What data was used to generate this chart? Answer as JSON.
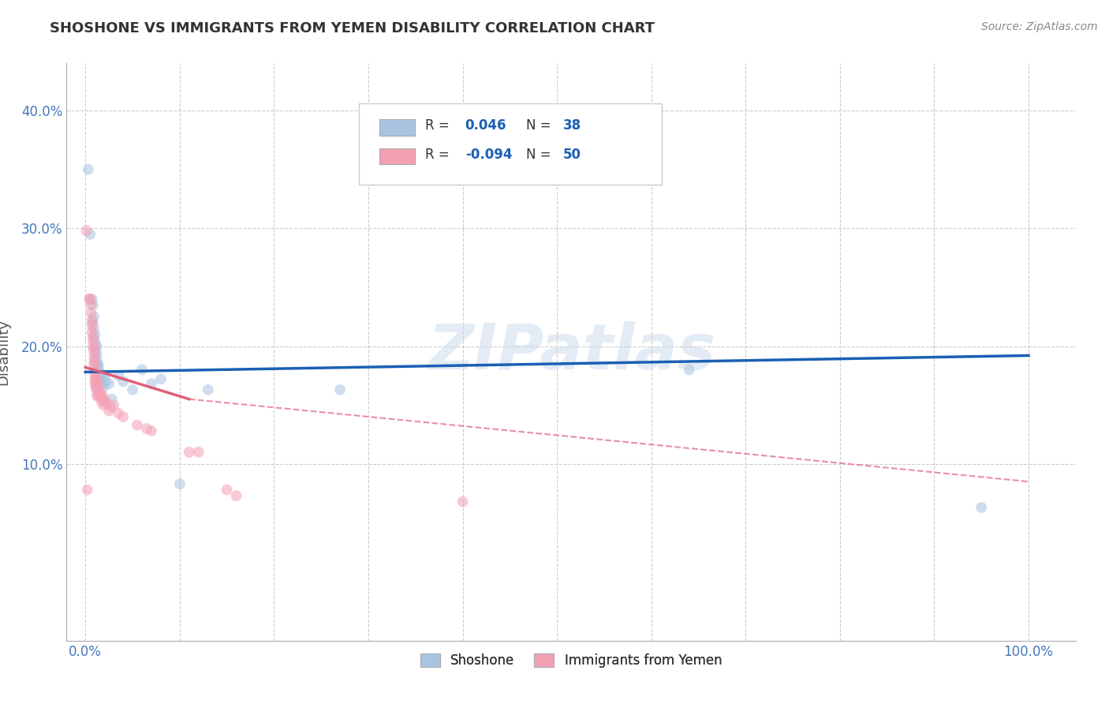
{
  "title": "SHOSHONE VS IMMIGRANTS FROM YEMEN DISABILITY CORRELATION CHART",
  "source": "Source: ZipAtlas.com",
  "ylabel": "Disability",
  "watermark": "ZIPatlas",
  "shoshone_color": "#a8c4e0",
  "yemen_color": "#f4a0b5",
  "line_shoshone_color": "#1a5fb4",
  "line_yemen_color": "#e0607a",
  "shoshone_scatter": [
    [
      0.003,
      0.35
    ],
    [
      0.005,
      0.295
    ],
    [
      0.007,
      0.24
    ],
    [
      0.008,
      0.235
    ],
    [
      0.008,
      0.22
    ],
    [
      0.009,
      0.225
    ],
    [
      0.009,
      0.215
    ],
    [
      0.01,
      0.21
    ],
    [
      0.01,
      0.205
    ],
    [
      0.011,
      0.2
    ],
    [
      0.011,
      0.195
    ],
    [
      0.012,
      0.2
    ],
    [
      0.012,
      0.193
    ],
    [
      0.012,
      0.188
    ],
    [
      0.013,
      0.185
    ],
    [
      0.013,
      0.18
    ],
    [
      0.014,
      0.183
    ],
    [
      0.015,
      0.178
    ],
    [
      0.015,
      0.172
    ],
    [
      0.016,
      0.175
    ],
    [
      0.017,
      0.17
    ],
    [
      0.018,
      0.168
    ],
    [
      0.019,
      0.165
    ],
    [
      0.02,
      0.175
    ],
    [
      0.022,
      0.17
    ],
    [
      0.025,
      0.168
    ],
    [
      0.028,
      0.155
    ],
    [
      0.035,
      0.175
    ],
    [
      0.04,
      0.17
    ],
    [
      0.05,
      0.163
    ],
    [
      0.06,
      0.18
    ],
    [
      0.07,
      0.168
    ],
    [
      0.08,
      0.172
    ],
    [
      0.1,
      0.083
    ],
    [
      0.13,
      0.163
    ],
    [
      0.27,
      0.163
    ],
    [
      0.64,
      0.18
    ],
    [
      0.95,
      0.063
    ]
  ],
  "yemen_scatter": [
    [
      0.001,
      0.298
    ],
    [
      0.004,
      0.24
    ],
    [
      0.005,
      0.24
    ],
    [
      0.006,
      0.235
    ],
    [
      0.006,
      0.228
    ],
    [
      0.007,
      0.222
    ],
    [
      0.007,
      0.218
    ],
    [
      0.007,
      0.212
    ],
    [
      0.008,
      0.208
    ],
    [
      0.008,
      0.205
    ],
    [
      0.008,
      0.2
    ],
    [
      0.009,
      0.198
    ],
    [
      0.009,
      0.195
    ],
    [
      0.009,
      0.19
    ],
    [
      0.009,
      0.185
    ],
    [
      0.01,
      0.188
    ],
    [
      0.01,
      0.183
    ],
    [
      0.01,
      0.178
    ],
    [
      0.01,
      0.173
    ],
    [
      0.01,
      0.168
    ],
    [
      0.011,
      0.175
    ],
    [
      0.011,
      0.17
    ],
    [
      0.011,
      0.165
    ],
    [
      0.012,
      0.17
    ],
    [
      0.012,
      0.163
    ],
    [
      0.012,
      0.158
    ],
    [
      0.013,
      0.168
    ],
    [
      0.013,
      0.162
    ],
    [
      0.014,
      0.157
    ],
    [
      0.015,
      0.163
    ],
    [
      0.016,
      0.158
    ],
    [
      0.017,
      0.153
    ],
    [
      0.018,
      0.158
    ],
    [
      0.019,
      0.15
    ],
    [
      0.02,
      0.155
    ],
    [
      0.022,
      0.152
    ],
    [
      0.025,
      0.145
    ],
    [
      0.027,
      0.148
    ],
    [
      0.03,
      0.15
    ],
    [
      0.035,
      0.143
    ],
    [
      0.04,
      0.14
    ],
    [
      0.055,
      0.133
    ],
    [
      0.065,
      0.13
    ],
    [
      0.07,
      0.128
    ],
    [
      0.11,
      0.11
    ],
    [
      0.12,
      0.11
    ],
    [
      0.15,
      0.078
    ],
    [
      0.16,
      0.073
    ],
    [
      0.4,
      0.068
    ],
    [
      0.002,
      0.078
    ]
  ],
  "shoshone_line": [
    [
      0.0,
      0.178
    ],
    [
      1.0,
      0.192
    ]
  ],
  "yemen_line_solid": [
    [
      0.0,
      0.182
    ],
    [
      0.11,
      0.155
    ]
  ],
  "yemen_line_dashed": [
    [
      0.11,
      0.155
    ],
    [
      1.0,
      0.085
    ]
  ],
  "xlim": [
    -0.02,
    1.05
  ],
  "ylim": [
    -0.05,
    0.44
  ],
  "xticks": [
    0.0,
    0.1,
    0.2,
    0.3,
    0.4,
    0.5,
    0.6,
    0.7,
    0.8,
    0.9,
    1.0
  ],
  "xtick_labels": [
    "0.0%",
    "",
    "",
    "",
    "",
    "",
    "",
    "",
    "",
    "",
    "100.0%"
  ],
  "yticks": [
    0.0,
    0.1,
    0.2,
    0.3,
    0.4
  ],
  "ytick_labels": [
    "",
    "10.0%",
    "20.0%",
    "30.0%",
    "40.0%"
  ],
  "grid_color": "#cccccc",
  "background_color": "#ffffff",
  "title_color": "#333333",
  "marker_size": 100,
  "marker_alpha": 0.55,
  "line_width": 2.5
}
